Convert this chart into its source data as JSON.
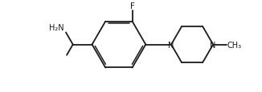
{
  "bg_color": "#ffffff",
  "line_color": "#1a1a1a",
  "text_color": "#1a1a1a",
  "label_F": "F",
  "label_NH2": "H₂N",
  "label_N1": "N",
  "label_N2": "N",
  "label_Me": "-",
  "line_width": 1.3,
  "font_size": 7.0,
  "figsize": [
    3.26,
    1.16
  ],
  "dpi": 100
}
